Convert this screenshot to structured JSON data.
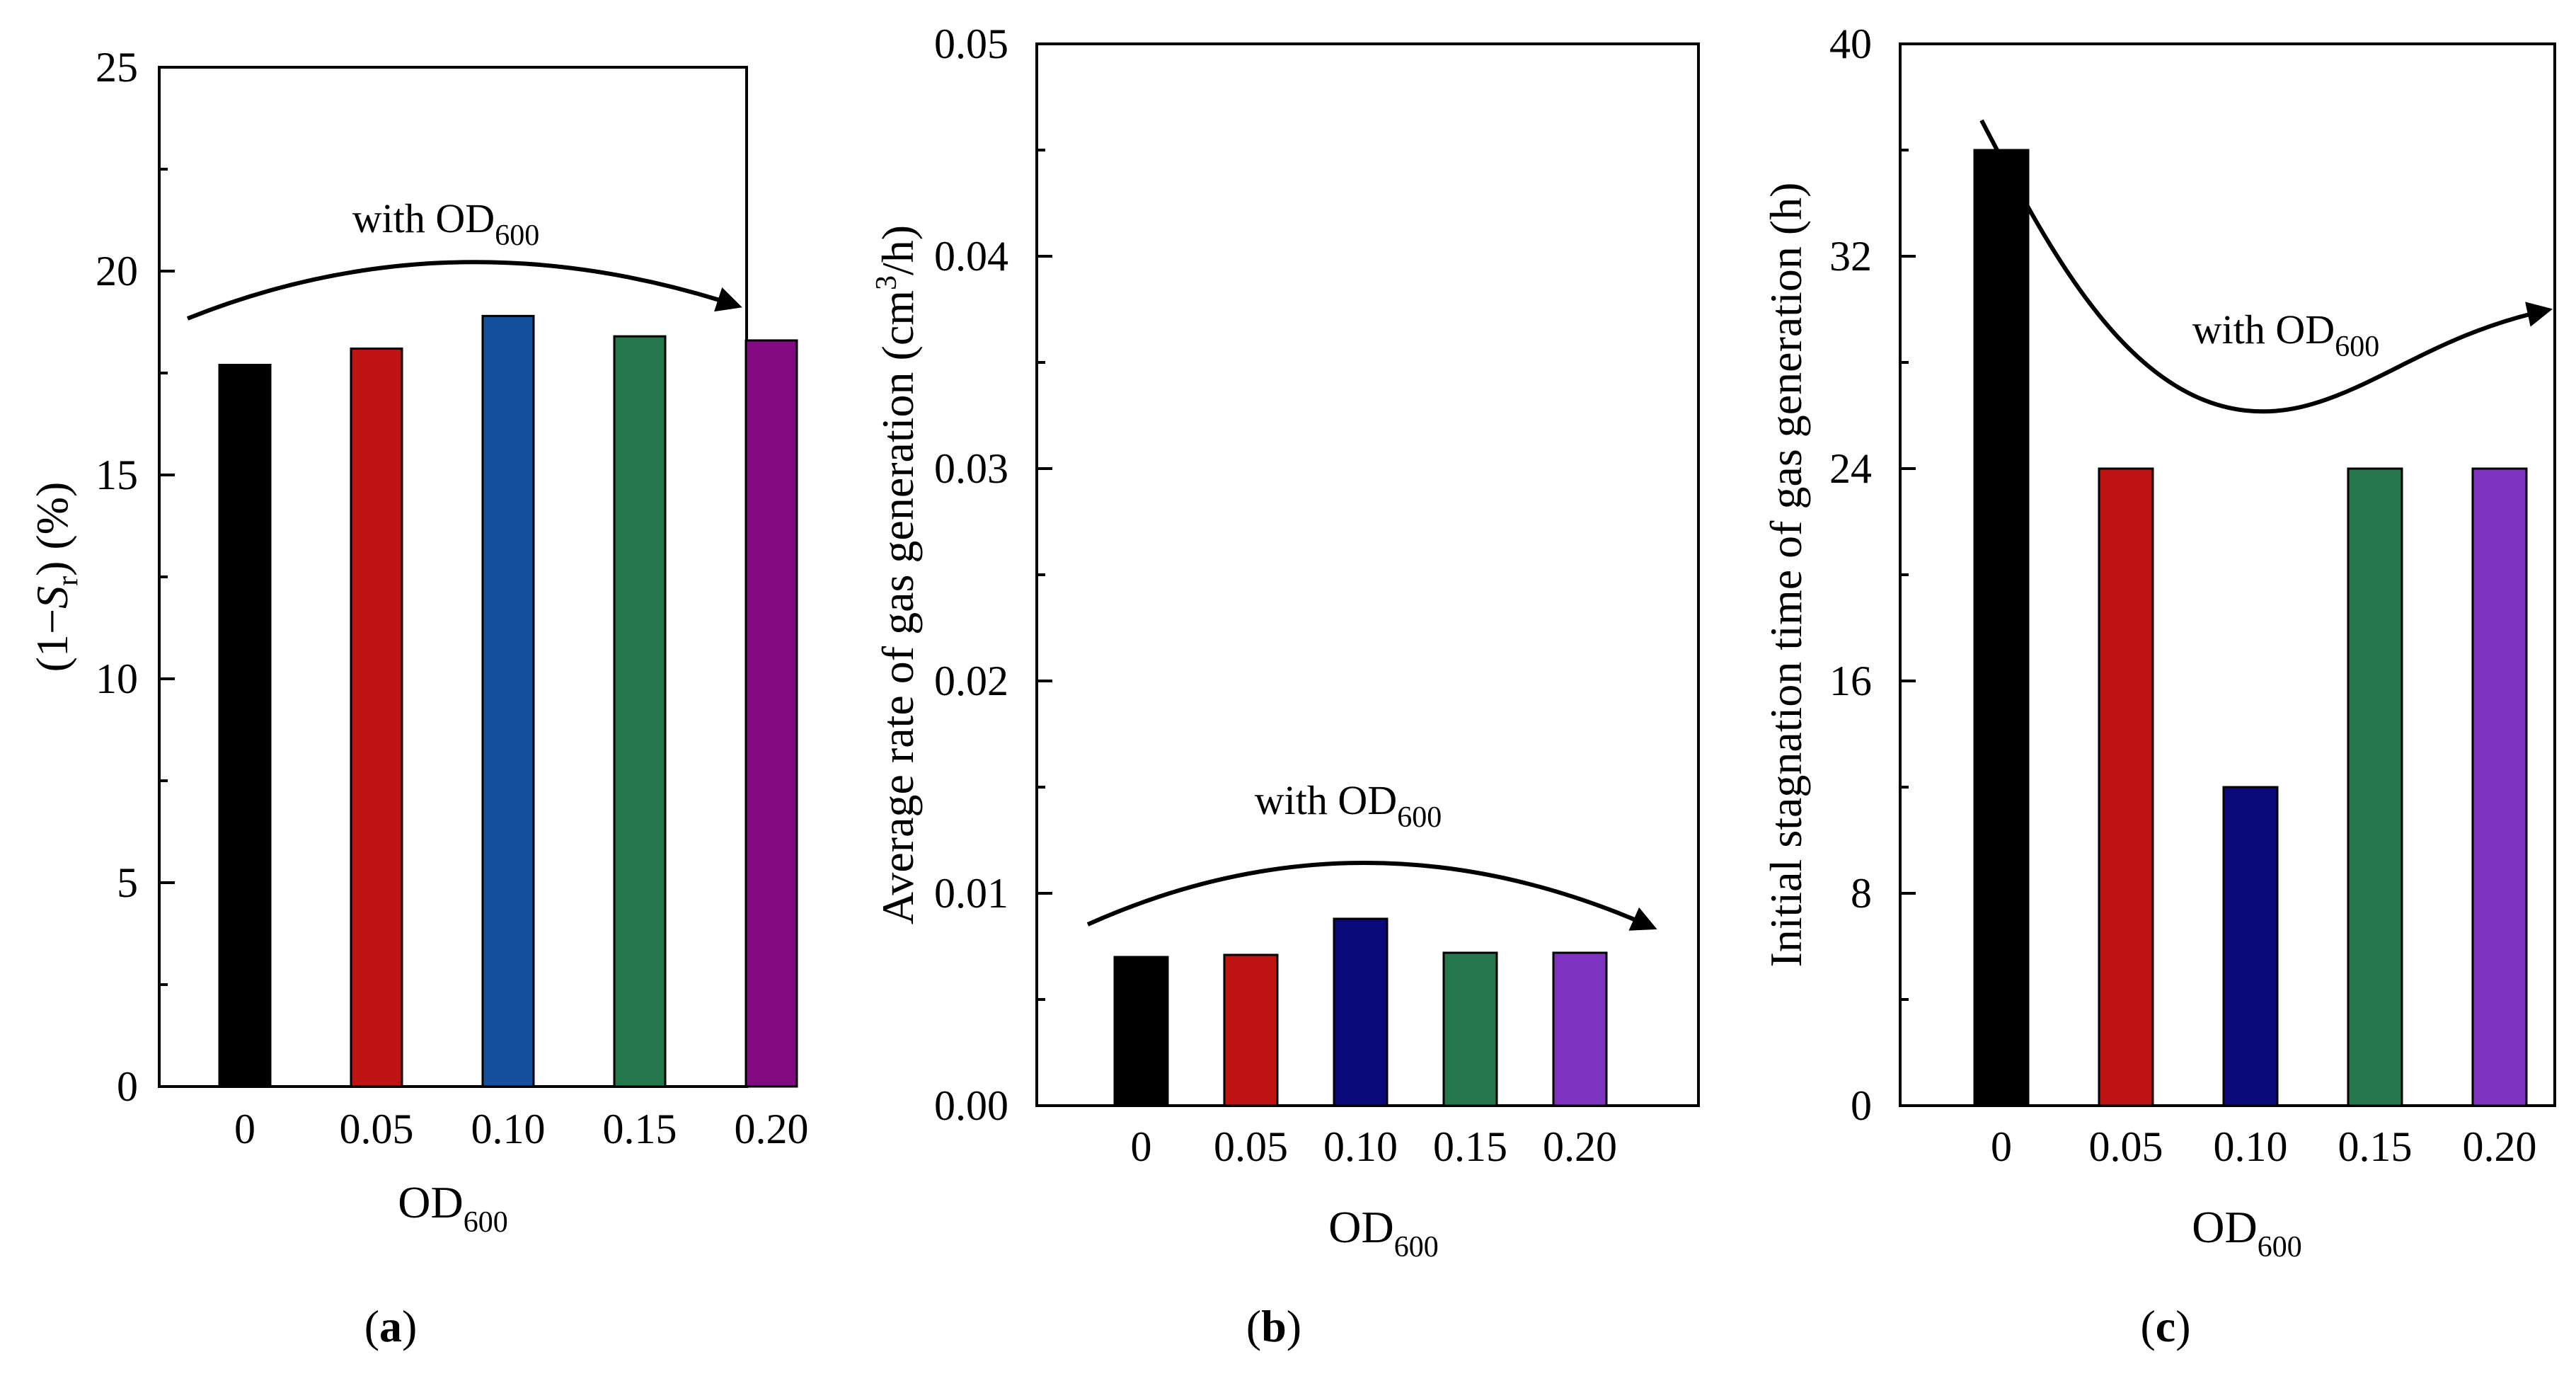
{
  "chart_data": [
    {
      "type": "bar",
      "panel_label": "a",
      "categories": [
        "0",
        "0.05",
        "0.10",
        "0.15",
        "0.20"
      ],
      "values": [
        17.7,
        18.1,
        18.9,
        18.4,
        18.3
      ],
      "colors": [
        "#000000",
        "#c01414",
        "#16509c",
        "#23774a",
        "#820a82"
      ],
      "ylim": [
        0,
        25
      ],
      "yticks": [
        0,
        5,
        10,
        15,
        20,
        25
      ],
      "ytick_labels": [
        "0",
        "5",
        "10",
        "15",
        "20",
        "25"
      ],
      "ylabel": {
        "pre": "(1−",
        "italic": "S",
        "sub": "r",
        "post": ") (%)"
      },
      "xlabel": {
        "main": "OD",
        "sub": "600"
      },
      "annotation": {
        "main": "with OD",
        "sub": "600"
      },
      "arrow_trend": "rising-then-falling"
    },
    {
      "type": "bar",
      "panel_label": "b",
      "categories": [
        "0",
        "0.05",
        "0.10",
        "0.15",
        "0.20"
      ],
      "values": [
        0.007,
        0.0071,
        0.0088,
        0.0072,
        0.0072
      ],
      "colors": [
        "#000000",
        "#c01414",
        "#0a0a7a",
        "#23774a",
        "#7d32c0"
      ],
      "ylim": [
        0,
        0.05
      ],
      "yticks": [
        0,
        0.01,
        0.02,
        0.03,
        0.04,
        0.05
      ],
      "ytick_labels": [
        "0.00",
        "0.01",
        "0.02",
        "0.03",
        "0.04",
        "0.05"
      ],
      "ylabel": {
        "main": "Average rate of gas generation (cm",
        "sup": "3",
        "post": "/h)"
      },
      "xlabel": {
        "main": "OD",
        "sub": "600"
      },
      "annotation": {
        "main": "with OD",
        "sub": "600"
      },
      "arrow_trend": "rising-then-falling"
    },
    {
      "type": "bar",
      "panel_label": "c",
      "categories": [
        "0",
        "0.05",
        "0.10",
        "0.15",
        "0.20"
      ],
      "values": [
        36,
        24,
        12,
        24,
        24
      ],
      "colors": [
        "#000000",
        "#c01414",
        "#0a0a7a",
        "#23774a",
        "#7d32c0"
      ],
      "ylim": [
        0,
        40
      ],
      "yticks": [
        0,
        8,
        16,
        24,
        32,
        40
      ],
      "ytick_labels": [
        "0",
        "8",
        "16",
        "24",
        "32",
        "40"
      ],
      "ylabel": {
        "main": "Initial stagnation time of gas generation (h)"
      },
      "xlabel": {
        "main": "OD",
        "sub": "600"
      },
      "annotation": {
        "main": "with OD",
        "sub": "600"
      },
      "arrow_trend": "falling-then-rising"
    }
  ]
}
